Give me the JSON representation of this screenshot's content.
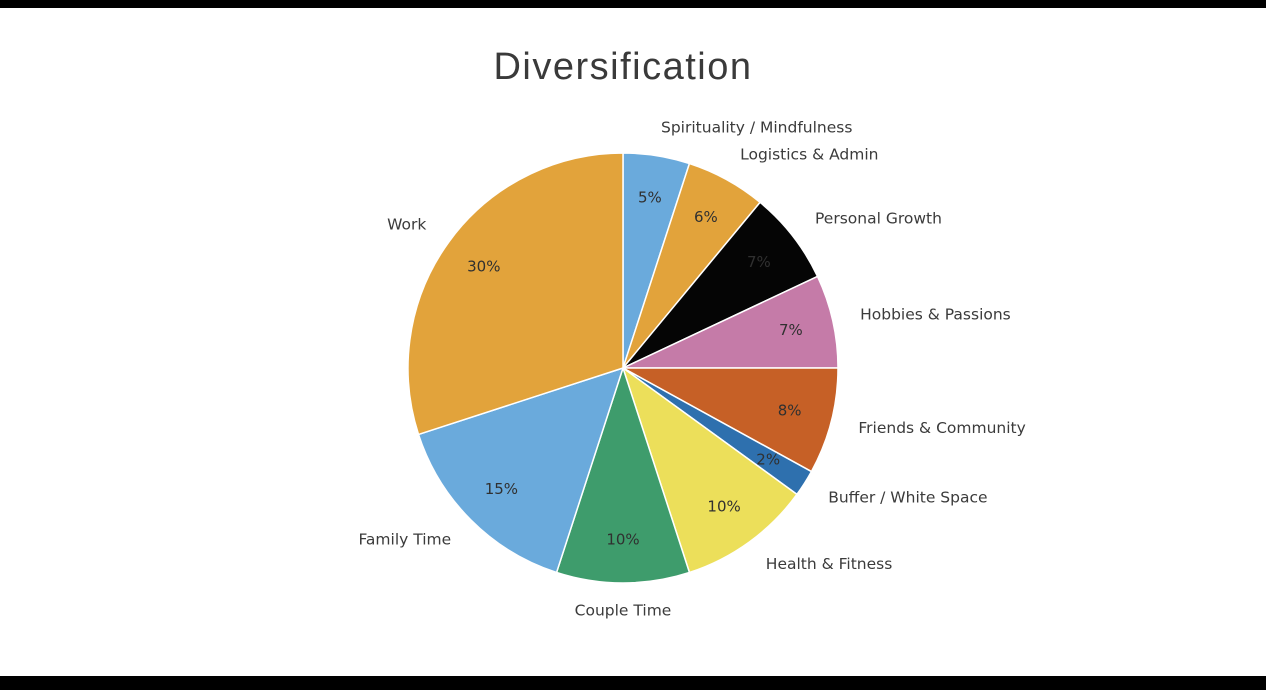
{
  "page": {
    "background_color": "#ffffff",
    "top_bar_color": "#000000",
    "bottom_bar_color": "#000000"
  },
  "chart_data": {
    "type": "pie",
    "title": "Diversification",
    "start_angle_deg": 0,
    "direction": "clockwise",
    "legend_position": "none",
    "label_color": "#3b3b3b",
    "percent_label_color": "#303030",
    "slice_stroke": "#ffffff",
    "slices": [
      {
        "label": "Spirituality / Mindfulness",
        "value": 5,
        "percent_label": "5%",
        "color": "#6aaadc"
      },
      {
        "label": "Logistics & Admin",
        "value": 6,
        "percent_label": "6%",
        "color": "#e2a33b"
      },
      {
        "label": "Personal Growth",
        "value": 7,
        "percent_label": "7%",
        "color": "#050505"
      },
      {
        "label": "Hobbies & Passions",
        "value": 7,
        "percent_label": "7%",
        "color": "#c57ba8"
      },
      {
        "label": "Friends & Community",
        "value": 8,
        "percent_label": "8%",
        "color": "#c66026"
      },
      {
        "label": "Buffer / White Space",
        "value": 2,
        "percent_label": "2%",
        "color": "#2e70ae"
      },
      {
        "label": "Health & Fitness",
        "value": 10,
        "percent_label": "10%",
        "color": "#ecdf5a"
      },
      {
        "label": "Couple Time",
        "value": 10,
        "percent_label": "10%",
        "color": "#3e9c6c"
      },
      {
        "label": "Family Time",
        "value": 15,
        "percent_label": "15%",
        "color": "#6aaadc"
      },
      {
        "label": "Work",
        "value": 30,
        "percent_label": "30%",
        "color": "#e2a33b"
      }
    ]
  }
}
